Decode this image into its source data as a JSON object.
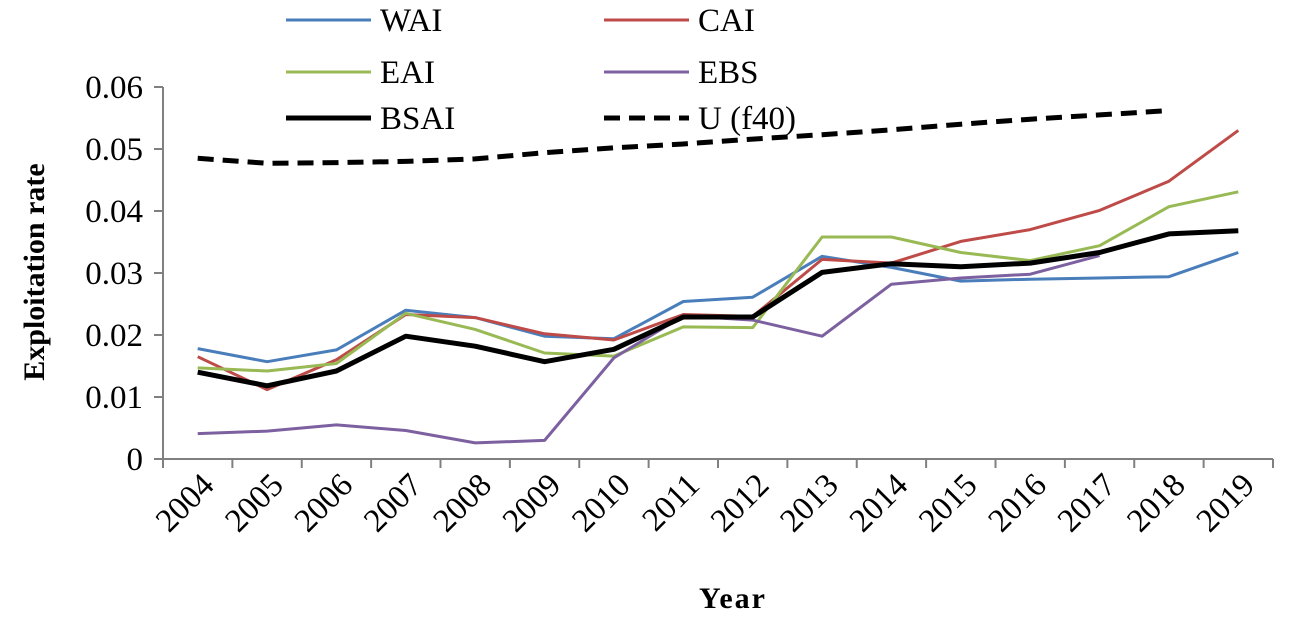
{
  "chart_data": {
    "type": "line",
    "xlabel": "Year",
    "ylabel": "Exploitation rate",
    "ylim": [
      0,
      0.06
    ],
    "yticks": [
      "0",
      "0.01",
      "0.02",
      "0.03",
      "0.04",
      "0.05",
      "0.06"
    ],
    "categories": [
      "2004",
      "2005",
      "2006",
      "2007",
      "2008",
      "2009",
      "2010",
      "2011",
      "2012",
      "2013",
      "2014",
      "2015",
      "2016",
      "2017",
      "2018",
      "2019"
    ],
    "grid": false,
    "legend_position": "top",
    "series": [
      {
        "name": "WAI",
        "color": "#4a7ebb",
        "dash": "solid",
        "values": [
          0.0178,
          0.0157,
          0.0176,
          0.024,
          0.0228,
          0.0198,
          0.0194,
          0.0254,
          0.0261,
          0.0327,
          0.0309,
          0.0287,
          0.029,
          0.0292,
          0.0294,
          0.0333
        ]
      },
      {
        "name": "CAI",
        "color": "#be4b48",
        "dash": "solid",
        "values": [
          0.0165,
          0.0112,
          0.016,
          0.0233,
          0.0228,
          0.0202,
          0.0192,
          0.0233,
          0.023,
          0.0322,
          0.0316,
          0.0351,
          0.037,
          0.0401,
          0.0448,
          0.053
        ]
      },
      {
        "name": "EAI",
        "color": "#98b954",
        "dash": "solid",
        "values": [
          0.0147,
          0.0142,
          0.0154,
          0.0235,
          0.0209,
          0.0171,
          0.0166,
          0.0213,
          0.0212,
          0.0358,
          0.0358,
          0.0333,
          0.032,
          0.0344,
          0.0407,
          0.0431
        ]
      },
      {
        "name": "EBS",
        "color": "#7d60a0",
        "dash": "solid",
        "values": [
          0.0041,
          0.0045,
          0.0055,
          0.0046,
          0.0026,
          0.003,
          0.0163,
          0.0231,
          0.0224,
          0.0198,
          0.0282,
          0.0292,
          0.0298,
          0.0328,
          null,
          null
        ]
      },
      {
        "name": "BSAI",
        "color": "#000000",
        "dash": "solid",
        "bold": true,
        "values": [
          0.014,
          0.0118,
          0.0142,
          0.0198,
          0.0182,
          0.0157,
          0.0177,
          0.0229,
          0.0229,
          0.0301,
          0.0315,
          0.031,
          0.0316,
          0.0333,
          0.0363,
          0.0368
        ]
      },
      {
        "name": "U (f40)",
        "color": "#000000",
        "dash": "dashed",
        "bold": true,
        "values": [
          0.0485,
          0.0477,
          0.0478,
          0.048,
          0.0484,
          0.0494,
          0.0502,
          0.0508,
          0.0516,
          0.0523,
          0.0531,
          0.054,
          0.0548,
          0.0555,
          0.0562,
          null
        ]
      }
    ]
  }
}
